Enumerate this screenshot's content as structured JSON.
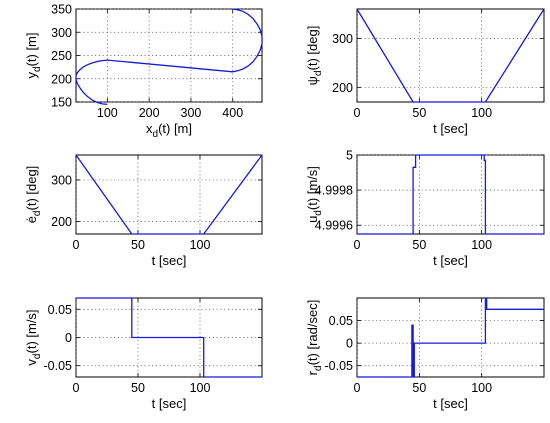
{
  "chart_data": [
    {
      "id": "xy",
      "type": "line",
      "xlabel": "x",
      "xlabel_sub": "d",
      "xlabel_tail": "(t) [m]",
      "ylabel": "y",
      "ylabel_sub": "d",
      "ylabel_tail": "(t) [m]",
      "xlim": [
        25,
        470
      ],
      "ylim": [
        150,
        350
      ],
      "xticks": [
        100,
        200,
        300,
        400
      ],
      "yticks": [
        150,
        200,
        250,
        300,
        350
      ],
      "ytick_labels": [
        "150",
        "200",
        "250",
        "300",
        "350"
      ],
      "grid": true,
      "x": [
        100,
        88,
        76,
        64,
        52,
        42,
        34,
        28,
        25,
        25,
        28,
        34,
        42,
        52,
        64,
        76,
        88,
        100,
        400,
        412,
        424,
        436,
        448,
        458,
        466,
        470,
        470,
        466,
        458,
        448,
        436,
        424,
        412,
        400
      ],
      "y": [
        145,
        146,
        149,
        154,
        162,
        171,
        181,
        190,
        199,
        207,
        213,
        219,
        225,
        230,
        234,
        237,
        239,
        240,
        215,
        217,
        221,
        227,
        236,
        248,
        262,
        276,
        291,
        305,
        318,
        330,
        339,
        345,
        348,
        350
      ]
    },
    {
      "id": "psi",
      "type": "line",
      "xlabel": "t [sec]",
      "ylabel": "ψ",
      "ylabel_sub": "d",
      "ylabel_tail": "(t) [deg]",
      "xlim": [
        0,
        150
      ],
      "ylim": [
        170,
        360
      ],
      "xticks": [
        0,
        50,
        100
      ],
      "yticks": [
        200,
        300
      ],
      "ytick_labels": [
        "200",
        "300"
      ],
      "grid": true,
      "x": [
        0,
        45,
        103,
        150
      ],
      "y": [
        360,
        170,
        170,
        360
      ]
    },
    {
      "id": "theta",
      "type": "line",
      "xlabel": "t [sec]",
      "ylabel": "ė",
      "ylabel_sub": "d",
      "ylabel_tail": "(t) [deg]",
      "xlim": [
        0,
        150
      ],
      "ylim": [
        170,
        360
      ],
      "xticks": [
        0,
        50,
        100
      ],
      "yticks": [
        200,
        300
      ],
      "ytick_labels": [
        "200",
        "300"
      ],
      "grid": true,
      "x": [
        0,
        45,
        103,
        150
      ],
      "y": [
        360,
        170,
        170,
        360
      ]
    },
    {
      "id": "u",
      "type": "line",
      "xlabel": "t [sec]",
      "ylabel": "u",
      "ylabel_sub": "d",
      "ylabel_tail": "(t) [m/s]",
      "xlim": [
        0,
        150
      ],
      "ylim": [
        4.99955,
        5.0
      ],
      "xticks": [
        0,
        50,
        100
      ],
      "yticks": [
        4.9996,
        4.9998,
        5.0
      ],
      "ytick_labels": [
        "4.9996",
        "4.9998",
        "5"
      ],
      "grid": true,
      "x": [
        0,
        45,
        45,
        47,
        47,
        102,
        102,
        103,
        103,
        150
      ],
      "y": [
        4.99955,
        4.99955,
        4.99993,
        4.99993,
        5.0,
        5.0,
        4.99997,
        4.99997,
        4.99955,
        4.99955
      ]
    },
    {
      "id": "v",
      "type": "line",
      "xlabel": "t [sec]",
      "ylabel": "v",
      "ylabel_sub": "d",
      "ylabel_tail": "(t) [m/s]",
      "xlim": [
        0,
        150
      ],
      "ylim": [
        -0.07,
        0.07
      ],
      "xticks": [
        0,
        50,
        100
      ],
      "yticks": [
        -0.05,
        0,
        0.05
      ],
      "ytick_labels": [
        "-0.05",
        "0",
        "0.05"
      ],
      "grid": true,
      "x": [
        0,
        45,
        45,
        103,
        103,
        150
      ],
      "y": [
        0.07,
        0.07,
        0,
        0,
        -0.07,
        -0.07
      ]
    },
    {
      "id": "r",
      "type": "line",
      "xlabel": "t [sec]",
      "ylabel": "r",
      "ylabel_sub": "d",
      "ylabel_tail": "(t) [rad/sec]",
      "xlim": [
        0,
        150
      ],
      "ylim": [
        -0.075,
        0.1
      ],
      "xticks": [
        0,
        50,
        100
      ],
      "yticks": [
        -0.05,
        0,
        0.05
      ],
      "ytick_labels": [
        "-0.05",
        "0",
        "0.05"
      ],
      "grid": true,
      "x": [
        0,
        44,
        44,
        45,
        45,
        46,
        46,
        103,
        103,
        104,
        104,
        150
      ],
      "y": [
        -0.075,
        -0.075,
        0.04,
        0.04,
        -0.075,
        -0.075,
        0,
        0,
        0.1,
        0.1,
        0.075,
        0.075
      ]
    }
  ]
}
